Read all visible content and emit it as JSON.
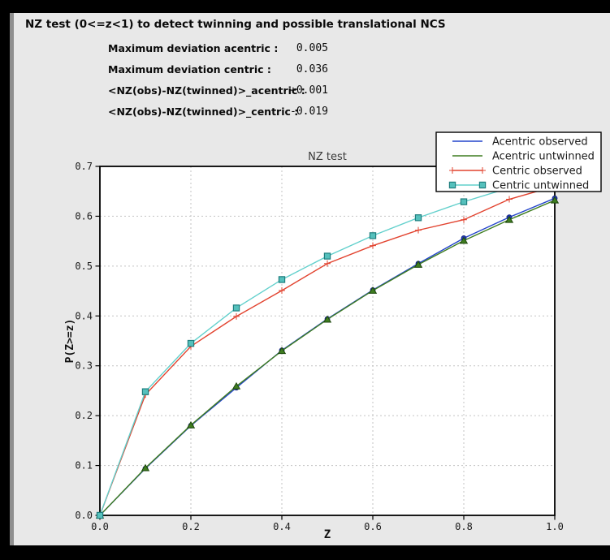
{
  "window": {
    "title": "NZ test (0<=z<1) to detect twinning and possible translational NCS"
  },
  "stats": {
    "rows": [
      {
        "label": "Maximum deviation acentric :",
        "value": "0.005"
      },
      {
        "label": "Maximum deviation centric :",
        "value": "0.036"
      },
      {
        "label": "<NZ(obs)-NZ(twinned)>_acentric :",
        "value": "+0.001"
      },
      {
        "label": "<NZ(obs)-NZ(twinned)>_centric :",
        "value": "-0.019"
      }
    ]
  },
  "chart_data": {
    "type": "line",
    "title": "NZ test",
    "xlabel": "Z",
    "ylabel": "P(Z>=z)",
    "xlim": [
      0.0,
      1.0
    ],
    "ylim": [
      0.0,
      0.7
    ],
    "xticks": [
      0.0,
      0.2,
      0.4,
      0.6,
      0.8,
      1.0
    ],
    "yticks": [
      0.0,
      0.1,
      0.2,
      0.3,
      0.4,
      0.5,
      0.6,
      0.7
    ],
    "grid": true,
    "grid_color": "#c3c3c3",
    "plot_bg": "#ffffff",
    "legend_position": "top-right",
    "x": [
      0.0,
      0.1,
      0.2,
      0.3,
      0.4,
      0.5,
      0.6,
      0.7,
      0.8,
      0.9,
      1.0
    ],
    "series": [
      {
        "name": "Acentric observed",
        "color": "#2445cb",
        "marker": "circle",
        "marker_fill": "#2038b8",
        "marker_edge": "#15257f",
        "values": [
          0.0,
          0.094,
          0.18,
          0.256,
          0.331,
          0.394,
          0.452,
          0.505,
          0.556,
          0.598,
          0.636
        ]
      },
      {
        "name": "Acentric untwinned",
        "color": "#3f7d20",
        "marker": "triangle",
        "marker_fill": "#3f7d20",
        "marker_edge": "#1d470c",
        "values": [
          0.0,
          0.095,
          0.181,
          0.259,
          0.33,
          0.393,
          0.451,
          0.503,
          0.551,
          0.593,
          0.632
        ]
      },
      {
        "name": "Centric observed",
        "color": "#e2432f",
        "marker": "plus",
        "marker_fill": "#e2432f",
        "marker_edge": "#e2432f",
        "values": [
          0.0,
          0.242,
          0.339,
          0.399,
          0.451,
          0.505,
          0.541,
          0.572,
          0.593,
          0.634,
          0.66
        ]
      },
      {
        "name": "Centric untwinned",
        "color": "#62d0cc",
        "marker": "square",
        "marker_fill": "#55c0bc",
        "marker_edge": "#1f7f7f",
        "values": [
          0.0,
          0.248,
          0.345,
          0.416,
          0.473,
          0.52,
          0.561,
          0.597,
          0.629,
          0.657,
          0.683
        ]
      }
    ]
  }
}
